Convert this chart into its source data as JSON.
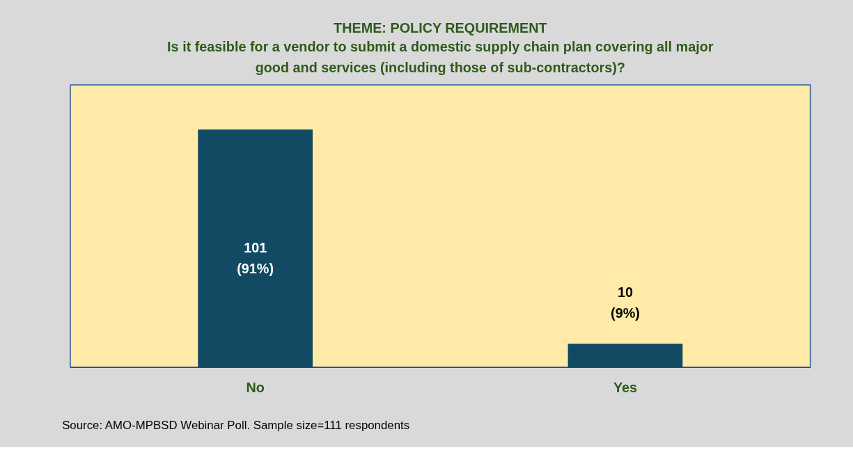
{
  "chart_data": {
    "type": "bar",
    "title": "THEME: POLICY REQUIREMENT",
    "subtitle": "Is it feasible for a vendor to submit a domestic supply chain plan covering all major good and services (including those of sub-contractors)?",
    "categories": [
      "No",
      "Yes"
    ],
    "values": [
      101,
      10
    ],
    "color": "#124a63",
    "value_labels": [
      "101\n(91%)",
      "10\n(9%)"
    ],
    "ylim": [
      0,
      120
    ],
    "tick_labels": "x",
    "grid": false,
    "annotations": [
      "Source: AMO-MPBSD Webinar Poll. Sample size=111 respondents"
    ]
  }
}
